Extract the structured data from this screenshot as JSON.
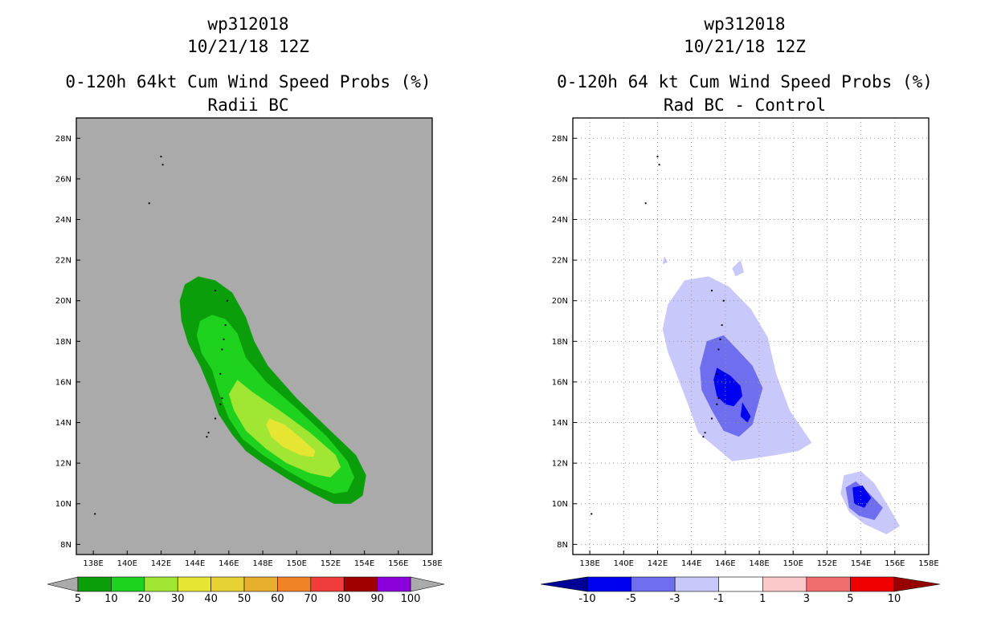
{
  "chart_data": [
    {
      "type": "filled-contour-map",
      "storm_id": "wp312018",
      "datetime": "10/21/18 12Z",
      "title": "0-120h 64kt Cum Wind Speed Probs (%)",
      "subtitle": "Radii BC",
      "units": "%",
      "background": "#aaaaaa",
      "xlim_lon": [
        137,
        158
      ],
      "ylim_lat": [
        7.5,
        29
      ],
      "x_ticks": [
        "138E",
        "140E",
        "142E",
        "144E",
        "146E",
        "148E",
        "150E",
        "152E",
        "154E",
        "156E",
        "158E"
      ],
      "y_ticks": [
        "8N",
        "10N",
        "12N",
        "14N",
        "16N",
        "18N",
        "20N",
        "22N",
        "24N",
        "26N",
        "28N"
      ],
      "grid": false,
      "colorbar": {
        "labels": [
          "5",
          "10",
          "20",
          "30",
          "40",
          "50",
          "60",
          "70",
          "80",
          "90",
          "100"
        ],
        "colors": [
          "#0a9f0a",
          "#1ed21e",
          "#a0e632",
          "#e6e632",
          "#e6d232",
          "#e6af2d",
          "#f08228",
          "#f03c3c",
          "#a00000",
          "#8c00dc"
        ]
      },
      "contour_levels": [
        {
          "min": 5,
          "max": 10,
          "color": "#0a9f0a",
          "polygon": [
            [
              143.4,
              20.8
            ],
            [
              144.2,
              21.2
            ],
            [
              145.2,
              21.0
            ],
            [
              146.2,
              20.4
            ],
            [
              147.0,
              19.2
            ],
            [
              147.5,
              18.0
            ],
            [
              148.3,
              16.8
            ],
            [
              150.0,
              15.2
            ],
            [
              152.0,
              13.6
            ],
            [
              153.5,
              12.4
            ],
            [
              154.1,
              11.4
            ],
            [
              153.9,
              10.4
            ],
            [
              153.2,
              10.0
            ],
            [
              152.2,
              10.0
            ],
            [
              151.0,
              10.5
            ],
            [
              149.5,
              11.2
            ],
            [
              148.0,
              12.0
            ],
            [
              147.0,
              12.6
            ],
            [
              146.2,
              13.4
            ],
            [
              145.4,
              14.4
            ],
            [
              144.9,
              15.6
            ],
            [
              144.3,
              16.8
            ],
            [
              143.6,
              17.9
            ],
            [
              143.2,
              19.0
            ],
            [
              143.1,
              20.0
            ]
          ]
        },
        {
          "min": 10,
          "max": 20,
          "color": "#1ed21e",
          "polygon": [
            [
              144.3,
              19.0
            ],
            [
              145.0,
              19.3
            ],
            [
              145.8,
              19.1
            ],
            [
              146.5,
              18.4
            ],
            [
              147.0,
              17.2
            ],
            [
              148.2,
              16.0
            ],
            [
              150.0,
              14.7
            ],
            [
              151.8,
              13.3
            ],
            [
              153.0,
              12.1
            ],
            [
              153.4,
              11.3
            ],
            [
              153.0,
              10.6
            ],
            [
              152.2,
              10.5
            ],
            [
              151.0,
              10.9
            ],
            [
              149.5,
              11.6
            ],
            [
              148.0,
              12.4
            ],
            [
              146.8,
              13.2
            ],
            [
              146.0,
              14.2
            ],
            [
              145.4,
              15.5
            ],
            [
              145.0,
              16.6
            ],
            [
              144.4,
              17.4
            ],
            [
              144.1,
              18.3
            ]
          ]
        },
        {
          "min": 20,
          "max": 30,
          "color": "#a0e632",
          "polygon": [
            [
              146.5,
              16.1
            ],
            [
              147.4,
              15.5
            ],
            [
              149.0,
              14.6
            ],
            [
              150.8,
              13.5
            ],
            [
              152.3,
              12.4
            ],
            [
              152.6,
              11.8
            ],
            [
              152.0,
              11.3
            ],
            [
              150.8,
              11.5
            ],
            [
              149.4,
              12.0
            ],
            [
              148.2,
              12.7
            ],
            [
              147.0,
              13.6
            ],
            [
              146.3,
              14.6
            ],
            [
              146.0,
              15.4
            ]
          ]
        },
        {
          "min": 30,
          "max": 40,
          "color": "#e6e632",
          "polygon": [
            [
              148.4,
              14.2
            ],
            [
              149.3,
              13.9
            ],
            [
              150.3,
              13.2
            ],
            [
              151.1,
              12.6
            ],
            [
              151.0,
              12.3
            ],
            [
              150.2,
              12.4
            ],
            [
              149.2,
              12.8
            ],
            [
              148.5,
              13.3
            ],
            [
              148.2,
              13.9
            ]
          ]
        }
      ]
    },
    {
      "type": "filled-contour-map",
      "storm_id": "wp312018",
      "datetime": "10/21/18 12Z",
      "title": "0-120h 64 kt Cum Wind Speed Probs (%)",
      "subtitle": "Rad BC - Control",
      "units": "%",
      "background": "#ffffff",
      "xlim_lon": [
        137,
        158
      ],
      "ylim_lat": [
        7.5,
        29
      ],
      "x_ticks": [
        "138E",
        "140E",
        "142E",
        "144E",
        "146E",
        "148E",
        "150E",
        "152E",
        "154E",
        "156E",
        "158E"
      ],
      "y_ticks": [
        "8N",
        "10N",
        "12N",
        "14N",
        "16N",
        "18N",
        "20N",
        "22N",
        "24N",
        "26N",
        "28N"
      ],
      "grid": true,
      "colorbar": {
        "labels": [
          "-10",
          "-5",
          "-3",
          "-1",
          "1",
          "3",
          "5",
          "10"
        ],
        "colors": [
          "#000096",
          "#0000f0",
          "#6e6eee",
          "#c8c8fa",
          "#ffffff",
          "#fac8c8",
          "#f06e6e",
          "#f00000",
          "#960000"
        ]
      },
      "contour_levels": [
        {
          "min": -3,
          "max": -1,
          "color": "#c8c8fa",
          "polygon": [
            [
              142.6,
              19.8
            ],
            [
              143.6,
              21.0
            ],
            [
              145.0,
              21.2
            ],
            [
              146.2,
              20.7
            ],
            [
              147.5,
              19.6
            ],
            [
              148.5,
              18.2
            ],
            [
              149.0,
              16.4
            ],
            [
              149.8,
              14.6
            ],
            [
              151.1,
              13.0
            ],
            [
              150.3,
              12.6
            ],
            [
              149.0,
              12.4
            ],
            [
              147.4,
              12.2
            ],
            [
              146.4,
              12.1
            ],
            [
              145.4,
              12.8
            ],
            [
              144.4,
              13.5
            ],
            [
              143.8,
              14.9
            ],
            [
              143.2,
              16.2
            ],
            [
              142.6,
              17.5
            ],
            [
              142.3,
              18.6
            ]
          ]
        },
        {
          "min": -3,
          "max": -1,
          "color": "#c8c8fa",
          "polygon": [
            [
              153.0,
              11.4
            ],
            [
              154.0,
              11.6
            ],
            [
              154.8,
              11.0
            ],
            [
              155.6,
              9.9
            ],
            [
              156.3,
              8.9
            ],
            [
              155.5,
              8.5
            ],
            [
              154.2,
              9.0
            ],
            [
              153.3,
              9.6
            ],
            [
              152.8,
              10.5
            ]
          ]
        },
        {
          "min": -3,
          "max": -1,
          "color": "#c8c8fa",
          "polygon": [
            [
              142.4,
              22.2
            ],
            [
              142.6,
              21.9
            ],
            [
              142.3,
              21.8
            ]
          ]
        },
        {
          "min": -3,
          "max": -1,
          "color": "#c8c8fa",
          "polygon": [
            [
              146.9,
              22.0
            ],
            [
              147.1,
              21.4
            ],
            [
              146.6,
              21.2
            ],
            [
              146.4,
              21.6
            ]
          ]
        },
        {
          "min": -5,
          "max": -3,
          "color": "#6e6eee",
          "polygon": [
            [
              144.9,
              18.0
            ],
            [
              145.9,
              18.3
            ],
            [
              146.7,
              17.6
            ],
            [
              147.6,
              16.8
            ],
            [
              148.2,
              15.7
            ],
            [
              147.6,
              13.9
            ],
            [
              146.8,
              13.3
            ],
            [
              145.9,
              13.6
            ],
            [
              145.2,
              14.6
            ],
            [
              144.6,
              15.6
            ],
            [
              144.5,
              16.7
            ]
          ]
        },
        {
          "min": -5,
          "max": -3,
          "color": "#6e6eee",
          "polygon": [
            [
              153.1,
              10.8
            ],
            [
              153.7,
              11.1
            ],
            [
              154.5,
              10.5
            ],
            [
              155.3,
              9.8
            ],
            [
              154.8,
              9.2
            ],
            [
              153.9,
              9.4
            ],
            [
              153.3,
              9.8
            ]
          ]
        },
        {
          "min": -10,
          "max": -5,
          "color": "#0000f0",
          "polygon": [
            [
              145.5,
              16.7
            ],
            [
              146.3,
              16.3
            ],
            [
              146.9,
              15.8
            ],
            [
              147.0,
              15.3
            ],
            [
              146.5,
              14.8
            ],
            [
              146.0,
              14.9
            ],
            [
              145.5,
              15.3
            ],
            [
              145.3,
              16.1
            ]
          ]
        },
        {
          "min": -10,
          "max": -5,
          "color": "#0000f0",
          "polygon": [
            [
              147.0,
              15.0
            ],
            [
              147.5,
              14.3
            ],
            [
              147.3,
              14.0
            ],
            [
              146.9,
              14.3
            ]
          ]
        },
        {
          "min": -10,
          "max": -5,
          "color": "#0000f0",
          "polygon": [
            [
              153.5,
              10.8
            ],
            [
              154.1,
              10.9
            ],
            [
              154.6,
              10.3
            ],
            [
              154.2,
              9.8
            ],
            [
              153.6,
              10.0
            ]
          ]
        }
      ]
    }
  ],
  "panels": [
    {
      "line1": "wp312018",
      "line2": "10/21/18 12Z",
      "line3": "0-120h 64kt Cum Wind Speed Probs (%)",
      "line4": "Radii BC"
    },
    {
      "line1": "wp312018",
      "line2": "10/21/18 12Z",
      "line3": "0-120h 64 kt Cum Wind Speed Probs (%)",
      "line4": "Rad BC - Control"
    }
  ],
  "islands": [
    [
      142.0,
      27.1
    ],
    [
      142.1,
      26.7
    ],
    [
      141.3,
      24.8
    ],
    [
      145.8,
      18.8
    ],
    [
      145.7,
      18.1
    ],
    [
      145.6,
      17.6
    ],
    [
      145.5,
      16.4
    ],
    [
      145.6,
      15.2
    ],
    [
      145.5,
      14.9
    ],
    [
      145.2,
      14.2
    ],
    [
      144.8,
      13.5
    ],
    [
      144.7,
      13.3
    ],
    [
      145.2,
      20.5
    ],
    [
      145.9,
      20.0
    ],
    [
      138.1,
      9.5
    ]
  ]
}
